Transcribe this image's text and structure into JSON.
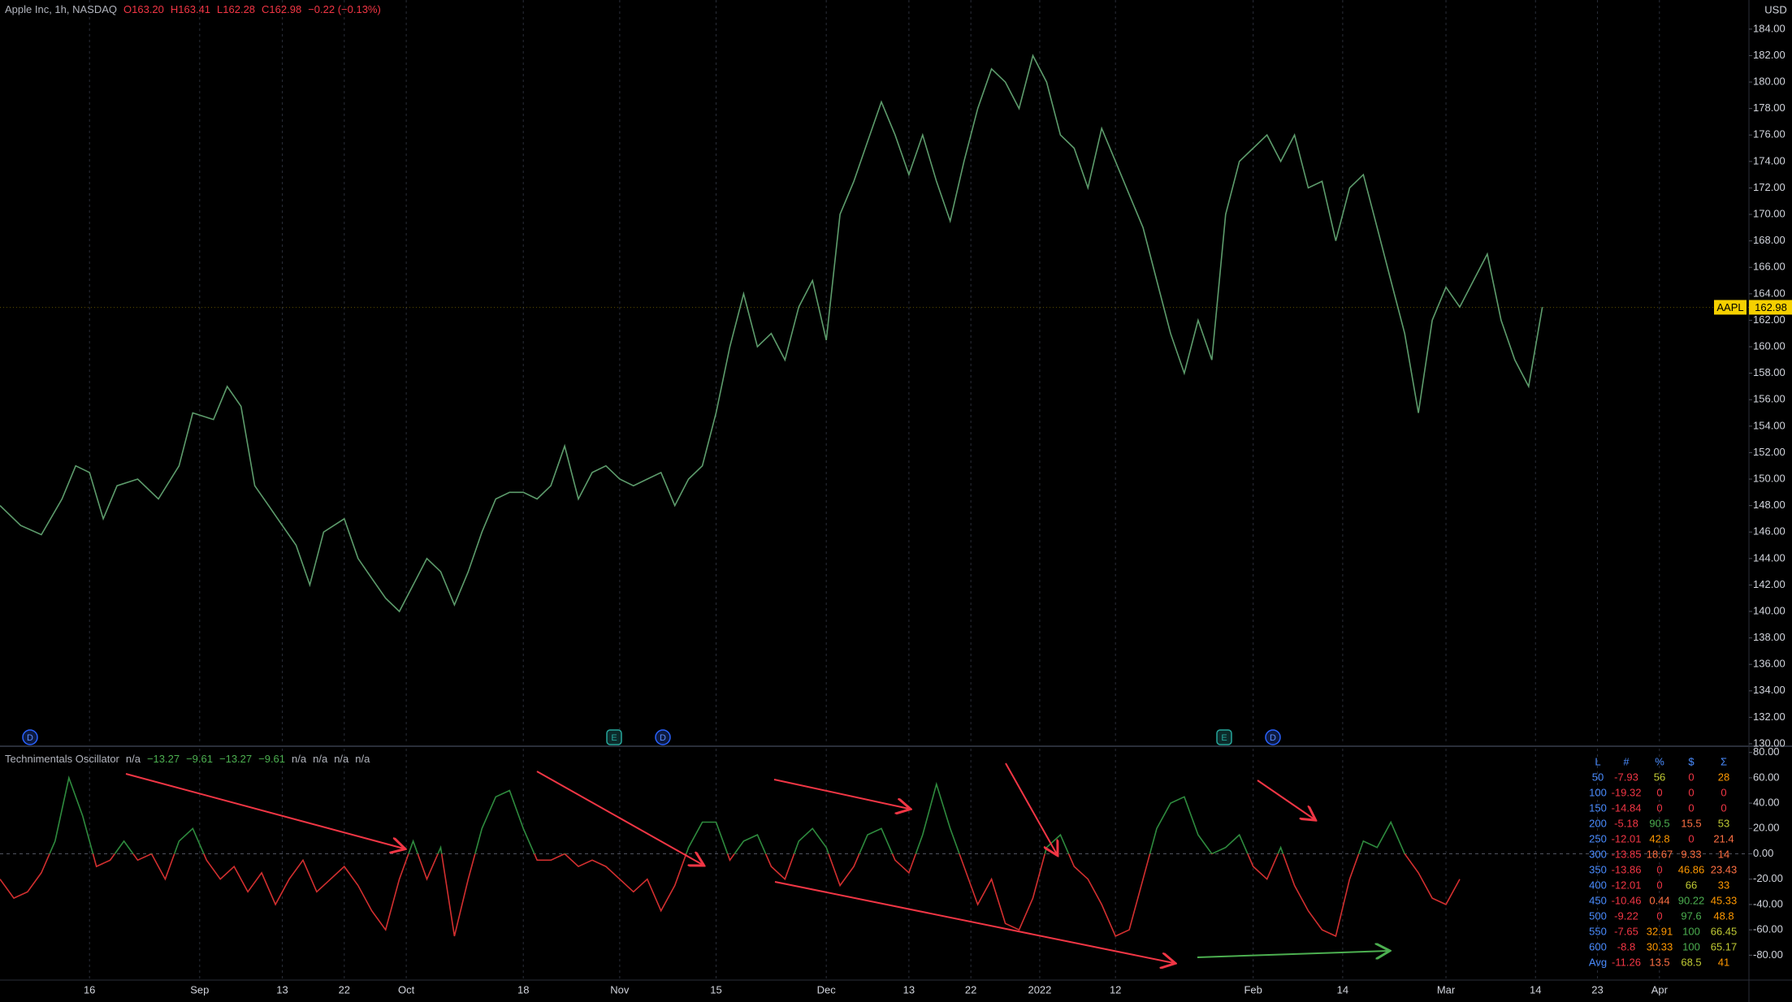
{
  "chart_data": [
    {
      "type": "line",
      "title": "Apple Inc, 1h, NASDAQ",
      "quote": [
        "O163.20",
        "H163.41",
        "L162.28",
        "C162.98",
        "−0.22 (−0.13%)"
      ],
      "currency": "USD",
      "color": "#5d9c6c",
      "last": {
        "name": "AAPL",
        "value": 162.98,
        "color": "#f5d000"
      },
      "xlim": [
        3,
        257
      ],
      "ylim": [
        130,
        186.2
      ],
      "x": [
        3,
        6,
        9,
        12,
        14,
        16,
        18,
        20,
        23,
        26,
        29,
        31,
        34,
        36,
        38,
        40,
        42,
        44,
        46,
        48,
        50,
        53,
        55,
        57,
        59,
        61,
        63,
        65,
        67,
        69,
        71,
        73,
        75,
        77,
        79,
        81,
        83,
        85,
        87,
        89,
        91,
        93,
        95,
        97,
        99,
        101,
        103,
        105,
        107,
        109,
        111,
        113,
        115,
        117,
        119,
        121,
        123,
        125,
        127,
        129,
        131,
        133,
        135,
        137,
        139,
        141,
        143,
        145,
        147,
        149,
        151,
        153,
        155,
        157,
        159,
        161,
        163,
        165,
        167,
        169,
        171,
        173,
        175,
        177,
        179,
        181,
        183,
        185,
        187,
        189,
        191,
        193,
        195,
        197,
        199,
        201,
        203,
        205,
        207,
        209,
        211,
        213,
        215,
        217,
        219,
        221,
        223,
        225,
        227
      ],
      "values": [
        148,
        146.5,
        145.8,
        148.5,
        151,
        150.5,
        147,
        149.5,
        150,
        148.5,
        151,
        155,
        154.5,
        157,
        155.5,
        149.5,
        148,
        146.5,
        145,
        142,
        146,
        147,
        144,
        142.5,
        141,
        140,
        142,
        144,
        143,
        140.5,
        143,
        146,
        148.5,
        149,
        149,
        148.5,
        149.5,
        152.5,
        148.5,
        150.5,
        151,
        150,
        149.5,
        150,
        150.5,
        148,
        150,
        151,
        155,
        160,
        164,
        160,
        161,
        159,
        163,
        165,
        160.5,
        170,
        172.5,
        175.5,
        178.5,
        176,
        173,
        176,
        172.5,
        169.5,
        174,
        178,
        181,
        180,
        178,
        182,
        180,
        176,
        175,
        172,
        176.5,
        174,
        171.5,
        169,
        165,
        161,
        158,
        162,
        159,
        170,
        174,
        175,
        176,
        174,
        176,
        172,
        172.5,
        168,
        172,
        173,
        169,
        165,
        161,
        155,
        162,
        164.5,
        163,
        165,
        167,
        162,
        159,
        157,
        163
      ],
      "yticks": [
        {
          "value": 130,
          "label": "130.00"
        },
        {
          "value": 132,
          "label": "132.00"
        },
        {
          "value": 134,
          "label": "134.00"
        },
        {
          "value": 136,
          "label": "136.00"
        },
        {
          "value": 138,
          "label": "138.00"
        },
        {
          "value": 140,
          "label": "140.00"
        },
        {
          "value": 142,
          "label": "142.00"
        },
        {
          "value": 144,
          "label": "144.00"
        },
        {
          "value": 146,
          "label": "146.00"
        },
        {
          "value": 148,
          "label": "148.00"
        },
        {
          "value": 150,
          "label": "150.00"
        },
        {
          "value": 152,
          "label": "152.00"
        },
        {
          "value": 154,
          "label": "154.00"
        },
        {
          "value": 156,
          "label": "156.00"
        },
        {
          "value": 158,
          "label": "158.00"
        },
        {
          "value": 160,
          "label": "160.00"
        },
        {
          "value": 162,
          "label": "162.00"
        },
        {
          "value": 164,
          "label": "164.00"
        },
        {
          "value": 166,
          "label": "166.00"
        },
        {
          "value": 168,
          "label": "168.00"
        },
        {
          "value": 170,
          "label": "170.00"
        },
        {
          "value": 172,
          "label": "172.00"
        },
        {
          "value": 174,
          "label": "174.00"
        },
        {
          "value": 176,
          "label": "176.00"
        },
        {
          "value": 178,
          "label": "178.00"
        },
        {
          "value": 180,
          "label": "180.00"
        },
        {
          "value": 182,
          "label": "182.00"
        },
        {
          "value": 184,
          "label": "184.00"
        }
      ]
    },
    {
      "type": "line",
      "title": "Technimentals Oscillator",
      "legend_values": [
        "n/a",
        "−13.27",
        "−9.61",
        "−13.27",
        "−9.61",
        "n/a",
        "n/a",
        "n/a",
        "n/a"
      ],
      "color_above": "#2e8b3e",
      "color_below": "#d32f2f",
      "xlim": [
        3,
        257
      ],
      "ylim": [
        -99,
        83
      ],
      "x": [
        3,
        5,
        7,
        9,
        11,
        13,
        15,
        17,
        19,
        21,
        23,
        25,
        27,
        29,
        31,
        33,
        35,
        37,
        39,
        41,
        43,
        45,
        47,
        49,
        51,
        53,
        55,
        57,
        59,
        61,
        63,
        65,
        67,
        69,
        71,
        73,
        75,
        77,
        79,
        81,
        83,
        85,
        87,
        89,
        91,
        93,
        95,
        97,
        99,
        101,
        103,
        105,
        107,
        109,
        111,
        113,
        115,
        117,
        119,
        121,
        123,
        125,
        127,
        129,
        131,
        133,
        135,
        137,
        139,
        141,
        143,
        145,
        147,
        149,
        151,
        153,
        155,
        157,
        159,
        161,
        163,
        165,
        167,
        169,
        171,
        173,
        175,
        177,
        179,
        181,
        183,
        185,
        187,
        189,
        191,
        193,
        195,
        197,
        199,
        201,
        203,
        205,
        207,
        209,
        211,
        213,
        215
      ],
      "values": [
        -20,
        -35,
        -30,
        -15,
        10,
        60,
        30,
        -10,
        -5,
        10,
        -5,
        0,
        -20,
        10,
        20,
        -5,
        -20,
        -10,
        -30,
        -15,
        -40,
        -20,
        -5,
        -30,
        -20,
        -10,
        -25,
        -45,
        -60,
        -20,
        10,
        -20,
        5,
        -65,
        -20,
        20,
        45,
        50,
        20,
        -5,
        -5,
        0,
        -10,
        -5,
        -10,
        -20,
        -30,
        -20,
        -45,
        -25,
        5,
        25,
        25,
        -5,
        10,
        15,
        -10,
        -20,
        10,
        20,
        5,
        -25,
        -10,
        15,
        20,
        -5,
        -15,
        15,
        55,
        20,
        -10,
        -40,
        -20,
        -55,
        -60,
        -35,
        5,
        15,
        -10,
        -20,
        -40,
        -65,
        -60,
        -20,
        20,
        40,
        45,
        15,
        0,
        5,
        15,
        -10,
        -20,
        5,
        -25,
        -45,
        -60,
        -65,
        -20,
        10,
        5,
        25,
        0,
        -15,
        -35,
        -40,
        -20
      ],
      "yticks": [
        {
          "value": 80,
          "label": "80.00"
        },
        {
          "value": 60,
          "label": "60.00"
        },
        {
          "value": 40,
          "label": "40.00"
        },
        {
          "value": 20,
          "label": "20.00"
        },
        {
          "value": 0,
          "label": "0.00"
        },
        {
          "value": -20,
          "label": "-20.00"
        },
        {
          "value": -40,
          "label": "-40.00"
        },
        {
          "value": -60,
          "label": "-60.00"
        },
        {
          "value": -80,
          "label": "-80.00"
        }
      ],
      "xticks": [
        {
          "value": 16,
          "label": "16"
        },
        {
          "value": 32,
          "label": "Sep"
        },
        {
          "value": 44,
          "label": "13"
        },
        {
          "value": 53,
          "label": "22"
        },
        {
          "value": 62,
          "label": "Oct"
        },
        {
          "value": 79,
          "label": "18"
        },
        {
          "value": 93,
          "label": "Nov"
        },
        {
          "value": 107,
          "label": "15"
        },
        {
          "value": 123,
          "label": "Dec"
        },
        {
          "value": 135,
          "label": "13"
        },
        {
          "value": 144,
          "label": "22"
        },
        {
          "value": 154,
          "label": "2022"
        },
        {
          "value": 165,
          "label": "12"
        },
        {
          "value": 185,
          "label": "Feb"
        },
        {
          "value": 198,
          "label": "14"
        },
        {
          "value": 213,
          "label": "Mar"
        },
        {
          "value": 226,
          "label": "14"
        },
        {
          "value": 235,
          "label": "23"
        },
        {
          "value": 244,
          "label": "Apr"
        }
      ]
    }
  ],
  "events": [
    "D",
    "E",
    "D",
    "E",
    "D"
  ],
  "table": {
    "header": [
      "L",
      "#",
      "%",
      "$",
      "Σ"
    ],
    "rows": [
      [
        50,
        -7.93,
        56,
        0,
        28
      ],
      [
        100,
        -19.32,
        0,
        0,
        0
      ],
      [
        150,
        -14.84,
        0,
        0,
        0
      ],
      [
        200,
        -5.18,
        90.5,
        15.5,
        53
      ],
      [
        250,
        -12.01,
        42.8,
        0,
        21.4
      ],
      [
        300,
        -13.85,
        18.67,
        9.33,
        14
      ],
      [
        350,
        -13.86,
        0,
        46.86,
        23.43
      ],
      [
        400,
        -12.01,
        0,
        66,
        33
      ],
      [
        450,
        -10.46,
        0.44,
        90.22,
        45.33
      ],
      [
        500,
        -9.22,
        0,
        97.6,
        48.8
      ],
      [
        550,
        -7.65,
        32.91,
        100,
        66.45
      ],
      [
        600,
        -8.8,
        30.33,
        100,
        65.17
      ],
      [
        "Avg",
        -11.26,
        13.5,
        68.5,
        41
      ]
    ]
  }
}
